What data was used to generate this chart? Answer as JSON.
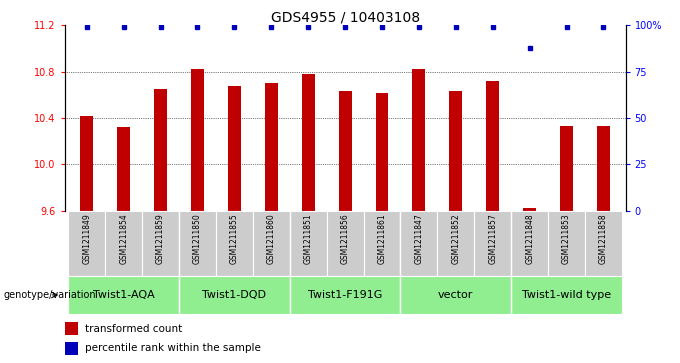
{
  "title": "GDS4955 / 10403108",
  "samples": [
    "GSM1211849",
    "GSM1211854",
    "GSM1211859",
    "GSM1211850",
    "GSM1211855",
    "GSM1211860",
    "GSM1211851",
    "GSM1211856",
    "GSM1211861",
    "GSM1211847",
    "GSM1211852",
    "GSM1211857",
    "GSM1211848",
    "GSM1211853",
    "GSM1211858"
  ],
  "bar_values": [
    10.42,
    10.32,
    10.65,
    10.82,
    10.68,
    10.7,
    10.78,
    10.63,
    10.62,
    10.82,
    10.63,
    10.72,
    9.62,
    10.33,
    10.33
  ],
  "percentile_values": [
    99,
    99,
    99,
    99,
    99,
    99,
    99,
    99,
    99,
    99,
    99,
    99,
    88,
    99,
    99
  ],
  "ylim_left": [
    9.6,
    11.2
  ],
  "yticks_left": [
    9.6,
    10.0,
    10.4,
    10.8,
    11.2
  ],
  "yticks_right": [
    0,
    25,
    50,
    75,
    100
  ],
  "bar_color": "#C00000",
  "dot_color": "#0000BB",
  "groups": [
    {
      "label": "Twist1-AQA",
      "start": 0,
      "end": 3
    },
    {
      "label": "Twist1-DQD",
      "start": 3,
      "end": 6
    },
    {
      "label": "Twist1-F191G",
      "start": 6,
      "end": 9
    },
    {
      "label": "vector",
      "start": 9,
      "end": 12
    },
    {
      "label": "Twist1-wild type",
      "start": 12,
      "end": 15
    }
  ],
  "xlabel_group": "genotype/variation",
  "legend_bar_label": "transformed count",
  "legend_dot_label": "percentile rank within the sample",
  "grid_yticks": [
    10.0,
    10.4,
    10.8
  ],
  "sample_box_color": "#CCCCCC",
  "group_box_color": "#90EE90",
  "title_fontsize": 10,
  "tick_fontsize": 7,
  "bar_fontsize": 6.5,
  "group_fontsize": 8
}
